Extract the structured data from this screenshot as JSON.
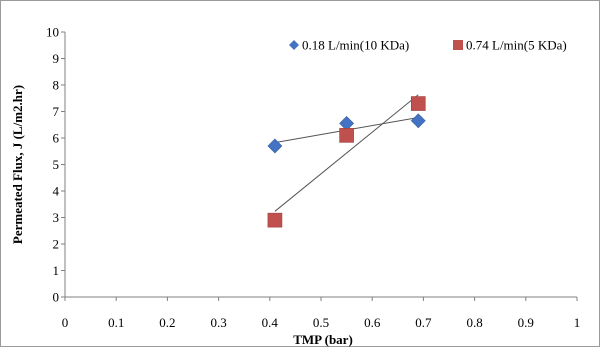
{
  "chart_data": {
    "type": "scatter",
    "title": "",
    "xlabel": "TMP (bar)",
    "ylabel": "Permeated Flux, J (L/m2.hr)",
    "xlim": [
      0,
      1
    ],
    "ylim": [
      0,
      10
    ],
    "x_ticks": [
      "0",
      "0.1",
      "0.2",
      "0.3",
      "0.4",
      "0.5",
      "0.6",
      "0.7",
      "0.8",
      "0.9",
      "1"
    ],
    "y_ticks": [
      "0",
      "1",
      "2",
      "3",
      "4",
      "5",
      "6",
      "7",
      "8",
      "9",
      "10"
    ],
    "grid": false,
    "legend_position": "top-right",
    "series": [
      {
        "name": "0.18 L/min(10 KDa)",
        "marker": "diamond",
        "color": "#4472C4",
        "x": [
          0.41,
          0.55,
          0.69
        ],
        "y": [
          5.7,
          6.55,
          6.65
        ],
        "trendline": true
      },
      {
        "name": "0.74 L/min(5 KDa)",
        "marker": "square",
        "color": "#C0504D",
        "x": [
          0.41,
          0.55,
          0.69
        ],
        "y": [
          2.9,
          6.1,
          7.3
        ],
        "trendline": true
      }
    ]
  }
}
